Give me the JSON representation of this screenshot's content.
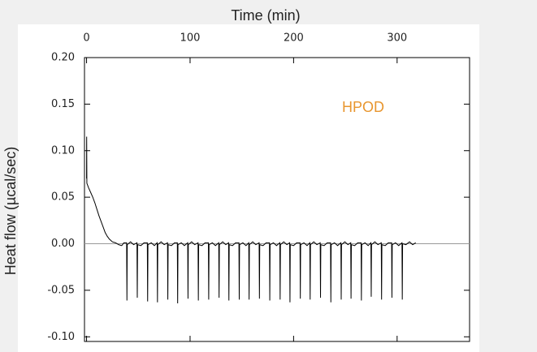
{
  "chart_data": {
    "type": "line",
    "x_label": "Time (min)",
    "y_label": "Heat flow (µcal/sec)",
    "annotation": "HPOD",
    "annotation_color": "#e8962f",
    "color": "#000000",
    "zero_line": true,
    "xlim": [
      -2,
      370
    ],
    "xticks": [
      0,
      100,
      200,
      300
    ],
    "ylim": [
      -0.105,
      0.2
    ],
    "yticks": [
      {
        "value": 0.2,
        "label": "0.20"
      },
      0.15,
      {
        "value": 0.1,
        "label": "0.10"
      },
      0.05,
      {
        "value": 0,
        "label": "0.00"
      },
      -0.05,
      {
        "value": -0.1,
        "label": "-0.10"
      }
    ],
    "x": [
      0,
      0.1,
      0.3,
      2,
      4,
      6,
      8,
      10,
      12,
      14,
      16,
      18,
      20,
      22,
      25,
      28,
      31,
      34,
      36,
      38.7,
      39,
      39.3,
      42.5,
      45.5,
      48.7,
      49,
      49.3,
      52.5,
      55.5,
      58.7,
      59,
      59.3,
      62.5,
      65.5,
      68.2,
      68.5,
      68.8,
      72,
      75,
      78.2,
      78.5,
      78.8,
      82,
      85,
      87.7,
      88,
      88.3,
      91.5,
      94.5,
      97.7,
      98,
      98.3,
      101.5,
      104.5,
      107.7,
      108,
      108.3,
      111.5,
      114.5,
      117.7,
      118,
      118.3,
      121.5,
      124.5,
      127.7,
      128,
      128.3,
      131.5,
      134.5,
      137.2,
      137.5,
      137.8,
      141,
      144,
      147.2,
      147.5,
      147.8,
      151,
      154,
      156.7,
      157,
      157.3,
      160.5,
      163.5,
      166.7,
      167,
      167.3,
      170.5,
      173.5,
      176.7,
      177,
      177.3,
      180.5,
      183.5,
      186.7,
      187,
      187.3,
      190.5,
      193.5,
      196.2,
      196.5,
      196.8,
      200,
      203,
      206.2,
      206.5,
      206.8,
      210,
      213,
      215.7,
      216,
      216.3,
      219.5,
      222.5,
      225.7,
      226,
      226.3,
      229.5,
      232.5,
      235.7,
      236,
      236.3,
      239.5,
      242.5,
      245.7,
      246,
      246.3,
      249.5,
      252.5,
      255.2,
      255.5,
      255.8,
      259,
      262,
      265.2,
      265.5,
      265.8,
      269,
      272,
      274.7,
      275,
      275.3,
      278.5,
      281.5,
      284.7,
      285,
      285.3,
      288.5,
      291.5,
      294.7,
      295,
      295.3,
      298.5,
      301.5,
      304.7,
      305,
      305.3,
      308.5,
      312,
      315,
      318
    ],
    "values": [
      0.07,
      0.115,
      0.065,
      0.06,
      0.055,
      0.05,
      0.044,
      0.037,
      0.03,
      0.024,
      0.018,
      0.012,
      0.008,
      0.005,
      0.002,
      0.001,
      -0.001,
      -0.002,
      0.001,
      0.001,
      -0.061,
      -0.001,
      0.002,
      -0.001,
      0.001,
      -0.058,
      -0.001,
      -0.002,
      0.001,
      0.001,
      -0.062,
      -0.001,
      0.001,
      -0.002,
      0.001,
      -0.063,
      -0.001,
      0.002,
      -0.001,
      0.001,
      -0.06,
      -0.001,
      -0.002,
      0.001,
      0.001,
      -0.064,
      -0.001,
      0.001,
      -0.002,
      0.001,
      -0.059,
      -0.001,
      0.002,
      -0.001,
      0.001,
      -0.061,
      -0.001,
      -0.002,
      0.001,
      0.001,
      -0.06,
      -0.001,
      0.001,
      -0.002,
      0.001,
      -0.058,
      -0.001,
      0.002,
      -0.001,
      0.001,
      -0.061,
      -0.001,
      -0.002,
      0.001,
      0.001,
      -0.06,
      -0.001,
      0.001,
      -0.002,
      0.001,
      -0.06,
      -0.001,
      0.002,
      -0.001,
      0.001,
      -0.059,
      -0.001,
      -0.002,
      0.001,
      0.001,
      -0.061,
      -0.001,
      0.001,
      -0.002,
      0.001,
      -0.06,
      -0.001,
      0.002,
      -0.001,
      0.001,
      -0.063,
      -0.001,
      -0.002,
      0.001,
      0.001,
      -0.059,
      -0.001,
      0.001,
      -0.002,
      0.001,
      -0.06,
      -0.001,
      0.002,
      -0.001,
      0.001,
      -0.058,
      -0.001,
      -0.002,
      0.001,
      0.001,
      -0.063,
      -0.001,
      0.001,
      -0.002,
      0.001,
      -0.06,
      -0.001,
      0.002,
      -0.001,
      0.001,
      -0.059,
      -0.001,
      -0.002,
      0.001,
      0.001,
      -0.061,
      -0.001,
      0.001,
      -0.002,
      0.001,
      -0.057,
      -0.001,
      0.002,
      -0.001,
      0.001,
      -0.06,
      -0.001,
      -0.002,
      0.001,
      0.001,
      -0.058,
      -0.001,
      0.001,
      -0.002,
      0.001,
      -0.06,
      0,
      -0.001,
      0.002,
      -0.001,
      0.001
    ]
  }
}
